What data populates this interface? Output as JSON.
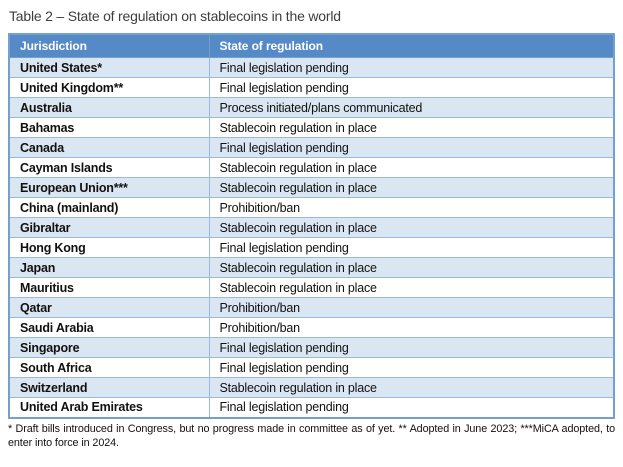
{
  "title": "Table 2 – State of regulation on stablecoins in the world",
  "table": {
    "columns": [
      "Jurisdiction",
      "State of regulation"
    ],
    "rows": [
      [
        "United States*",
        "Final legislation pending"
      ],
      [
        "United Kingdom**",
        "Final legislation pending"
      ],
      [
        "Australia",
        "Process initiated/plans communicated"
      ],
      [
        "Bahamas",
        "Stablecoin regulation in place"
      ],
      [
        "Canada",
        "Final legislation pending"
      ],
      [
        "Cayman Islands",
        "Stablecoin regulation in place"
      ],
      [
        "European Union***",
        "Stablecoin regulation in place"
      ],
      [
        "China (mainland)",
        "Prohibition/ban"
      ],
      [
        "Gibraltar",
        "Stablecoin regulation in place"
      ],
      [
        "Hong Kong",
        "Final legislation pending"
      ],
      [
        "Japan",
        "Stablecoin regulation in place"
      ],
      [
        "Mauritius",
        "Stablecoin regulation in place"
      ],
      [
        "Qatar",
        "Prohibition/ban"
      ],
      [
        "Saudi Arabia",
        "Prohibition/ban"
      ],
      [
        "Singapore",
        "Final legislation pending"
      ],
      [
        "South Africa",
        "Final legislation pending"
      ],
      [
        "Switzerland",
        "Stablecoin regulation in place"
      ],
      [
        "United Arab Emirates",
        "Final legislation pending"
      ]
    ]
  },
  "footnote": "* Draft bills introduced in Congress, but no progress made in committee as of yet. ** Adopted in June 2023; ***MiCA adopted, to enter into force in 2024.",
  "colors": {
    "header_bg": "#568ac6",
    "header_text": "#ffffff",
    "band_bg": "#dbe6f3",
    "border": "#9ab9de",
    "outer_border": "#74a0d0",
    "title_text": "#3d3d3d",
    "body_text": "#111111"
  }
}
